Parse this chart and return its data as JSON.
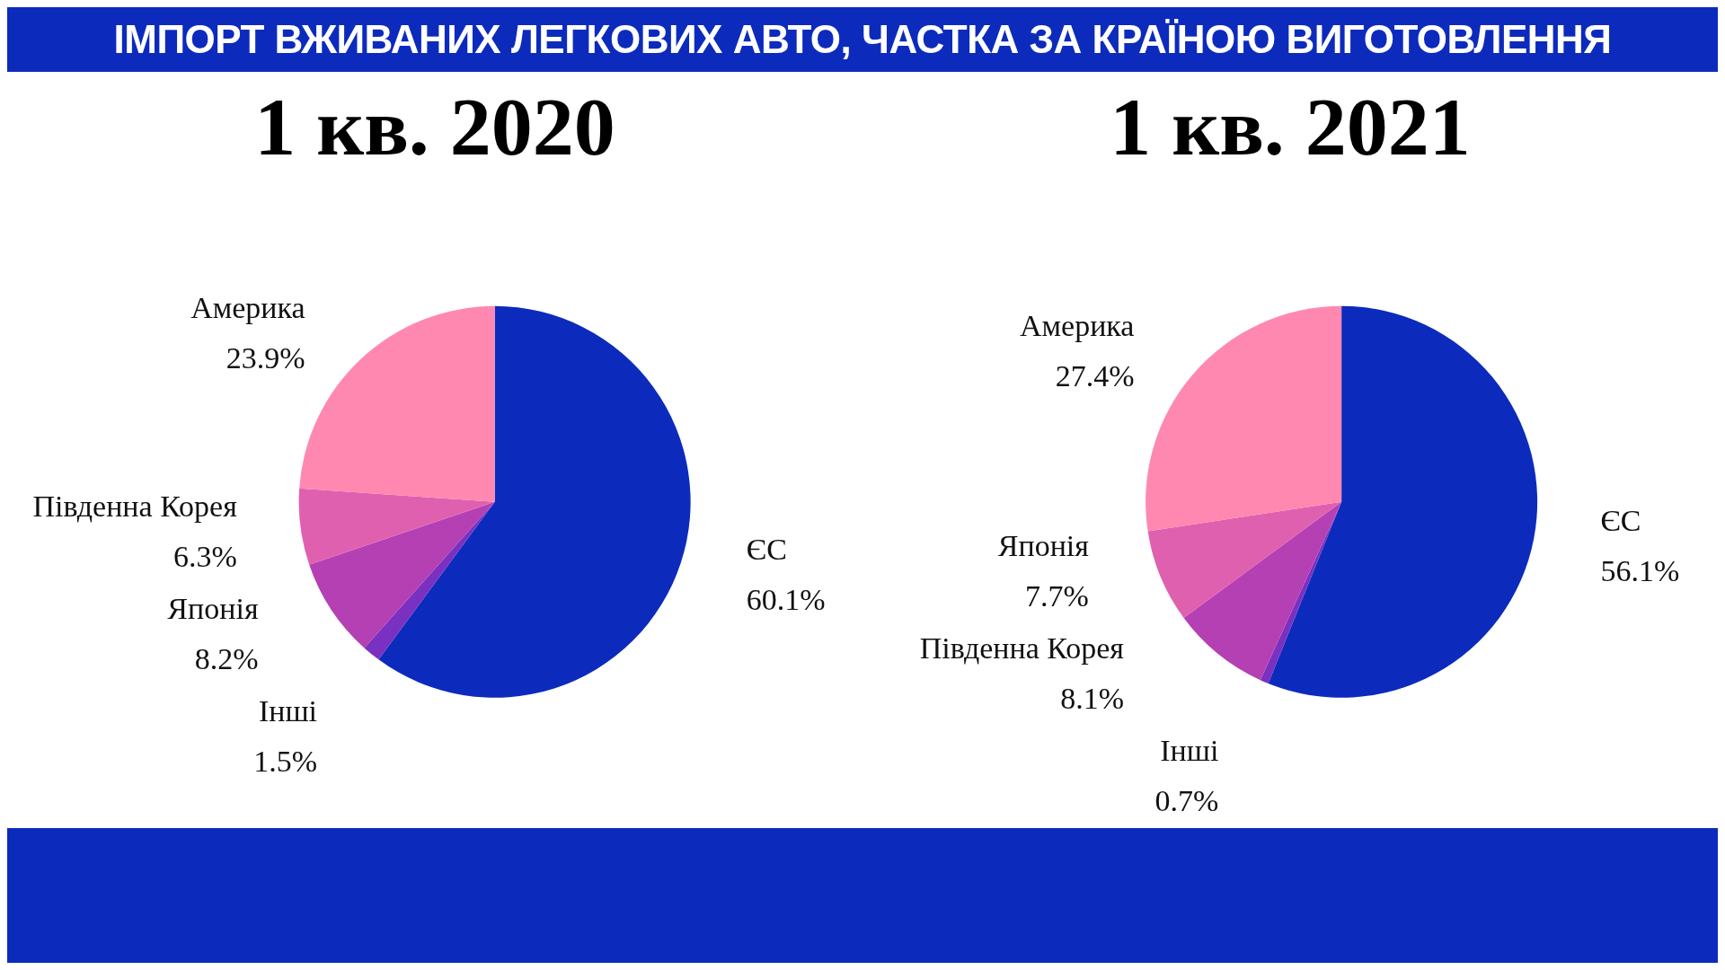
{
  "chart_data": [
    {
      "type": "pie",
      "title": "ІМПОРТ ВЖИВАНИХ ЛЕГКОВИХ АВТО, ЧАСТКА ЗА КРАЇНОЮ ВИГОТОВЛЕННЯ",
      "subtitle": "1 кв. 2020",
      "categories": [
        "ЄС",
        "Інші",
        "Японія",
        "Південна Корея",
        "Америка"
      ],
      "values": [
        60.1,
        1.5,
        8.2,
        6.3,
        23.9
      ],
      "value_labels": [
        "60.1%",
        "1.5%",
        "8.2%",
        "6.3%",
        "23.9%"
      ],
      "colors": [
        "#0c2bbd",
        "#7a30c0",
        "#b440b4",
        "#e060b0",
        "#ff88b0"
      ]
    },
    {
      "type": "pie",
      "subtitle": "1 кв. 2021",
      "categories": [
        "ЄС",
        "Інші",
        "Південна Корея",
        "Японія",
        "Америка"
      ],
      "values": [
        56.1,
        0.7,
        8.1,
        7.7,
        27.4
      ],
      "value_labels": [
        "56.1%",
        "0.7%",
        "8.1%",
        "7.7%",
        "27.4%"
      ],
      "colors": [
        "#0c2bbd",
        "#7a30c0",
        "#b440b4",
        "#e060b0",
        "#ff88b0"
      ]
    }
  ]
}
